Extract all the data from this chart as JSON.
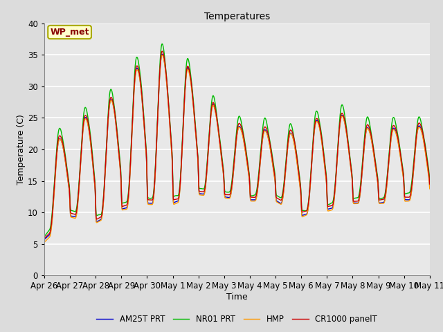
{
  "title": "Temperatures",
  "xlabel": "Time",
  "ylabel": "Temperature (C)",
  "ylim": [
    0,
    40
  ],
  "background_color": "#dcdcdc",
  "plot_bg_color": "#e8e8e8",
  "annotation_text": "WP_met",
  "annotation_bg": "#ffffcc",
  "annotation_border": "#aaaa00",
  "annotation_text_color": "#880000",
  "legend": [
    "CR1000 panelT",
    "HMP",
    "NR01 PRT",
    "AM25T PRT"
  ],
  "legend_colors": [
    "#cc0000",
    "#ff9900",
    "#00bb00",
    "#0000cc"
  ],
  "tick_labels": [
    "Apr 26",
    "Apr 27",
    "Apr 28",
    "Apr 29",
    "Apr 30",
    "May 1",
    "May 2",
    "May 3",
    "May 4",
    "May 5",
    "May 6",
    "May 7",
    "May 8",
    "May 9",
    "May 10",
    "May 11"
  ],
  "grid_color": "#ffffff",
  "line_width": 1.0
}
